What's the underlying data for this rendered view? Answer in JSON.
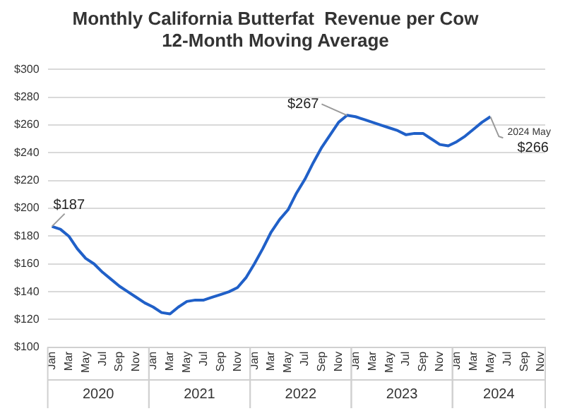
{
  "chart_data": {
    "type": "line",
    "title": "Monthly California Butterfat  Revenue per Cow",
    "subtitle": "12-Month Moving Average",
    "categories": [
      "Jan",
      null,
      "Mar",
      null,
      "May",
      null,
      "Jul",
      null,
      "Sep",
      null,
      "Nov",
      null,
      "Jan",
      null,
      "Mar",
      null,
      "May",
      null,
      "Jul",
      null,
      "Sep",
      null,
      "Nov",
      null,
      "Jan",
      null,
      "Mar",
      null,
      "May",
      null,
      "Jul",
      null,
      "Sep",
      null,
      "Nov",
      null,
      "Jan",
      null,
      "Mar",
      null,
      "May",
      null,
      "Jul",
      null,
      "Sep",
      null,
      "Nov",
      null,
      "Jan",
      null,
      "Mar",
      null,
      "May",
      null,
      "Jul",
      null,
      "Sep",
      null,
      "Nov"
    ],
    "series": [
      {
        "color": "#2060c8",
        "values": [
          187,
          185,
          180,
          171,
          164,
          160,
          154,
          149,
          144,
          140,
          136,
          132,
          129,
          125,
          124,
          129,
          133,
          134,
          134,
          136,
          138,
          140,
          143,
          150,
          160,
          171,
          183,
          192,
          199,
          211,
          221,
          233,
          244,
          253,
          262,
          267,
          266,
          264,
          262,
          260,
          258,
          256,
          253,
          254,
          254,
          250,
          246,
          245,
          248,
          252,
          257,
          262,
          266,
          null,
          null,
          null,
          null,
          null,
          null
        ],
        "value_labels": [
          "$187",
          null,
          null,
          null,
          null,
          null,
          null,
          null,
          null,
          null,
          null,
          null,
          null,
          null,
          null,
          null,
          null,
          null,
          null,
          null,
          null,
          null,
          null,
          null,
          null,
          null,
          null,
          null,
          null,
          null,
          null,
          null,
          null,
          null,
          null,
          "$267",
          null,
          null,
          null,
          null,
          null,
          null,
          null,
          null,
          null,
          null,
          null,
          null,
          null,
          null,
          null,
          null,
          "$266",
          null,
          null,
          null,
          null,
          null,
          null
        ]
      }
    ],
    "ylim": [
      100,
      300
    ],
    "yticks": [
      {
        "value": 100,
        "label": "$100"
      },
      {
        "value": 120,
        "label": "$120"
      },
      {
        "value": 140,
        "label": "$140"
      },
      {
        "value": 160,
        "label": "$160"
      },
      {
        "value": 180,
        "label": "$180"
      },
      {
        "value": 200,
        "label": "$200"
      },
      {
        "value": 220,
        "label": "$220"
      },
      {
        "value": 240,
        "label": "$240"
      },
      {
        "value": 260,
        "label": "$260"
      },
      {
        "value": 280,
        "label": "$280"
      },
      {
        "value": 300,
        "label": "$300"
      }
    ],
    "grid": "y",
    "legend": false,
    "marker": "none",
    "line_style": "solid",
    "annotations": [
      "2024 May",
      "2020",
      "2021",
      "2022",
      "2023",
      "2024"
    ]
  }
}
